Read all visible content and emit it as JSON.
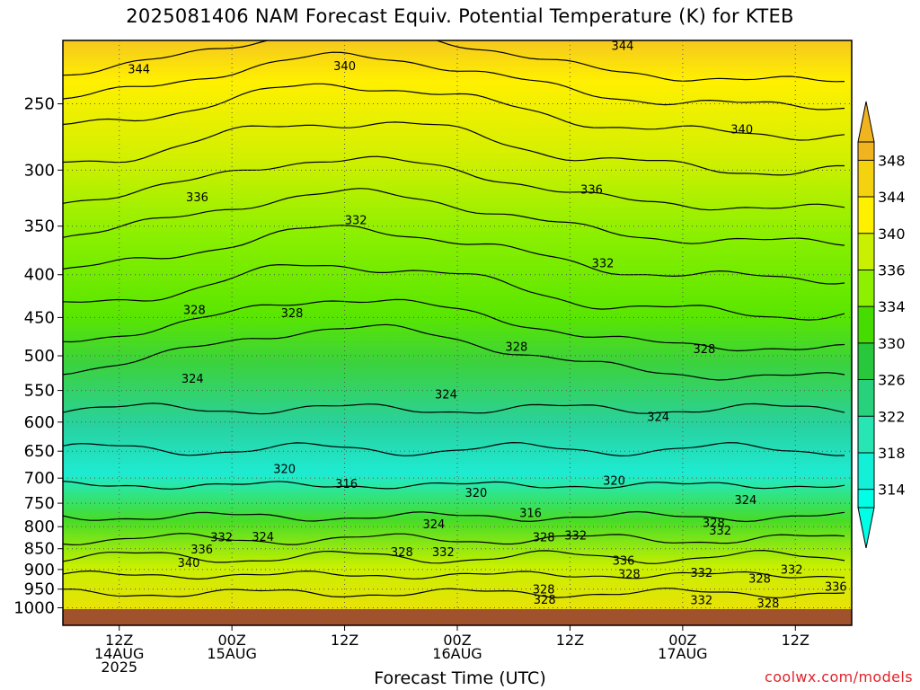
{
  "title": "2025081406 NAM Forecast Equiv. Potential Temperature (K) for KTEB",
  "credit": "coolwx.com/models",
  "chart_data": {
    "type": "heatmap",
    "variable": "Equivalent Potential Temperature",
    "units": "K",
    "xlabel": "Forecast Time (UTC)",
    "ylabel": "",
    "y_scale": "log-pressure (hPa), decreasing upward",
    "ylim": [
      1000,
      210
    ],
    "y_ticks": [
      250,
      300,
      350,
      400,
      450,
      500,
      550,
      600,
      650,
      700,
      750,
      800,
      850,
      900,
      950,
      1000
    ],
    "xlim_hours": [
      0,
      84
    ],
    "x_ticks": [
      {
        "hour": 6,
        "lines": [
          "12Z",
          "14AUG",
          "2025"
        ]
      },
      {
        "hour": 18,
        "lines": [
          "00Z",
          "15AUG"
        ]
      },
      {
        "hour": 30,
        "lines": [
          "12Z"
        ]
      },
      {
        "hour": 42,
        "lines": [
          "00Z",
          "16AUG"
        ]
      },
      {
        "hour": 54,
        "lines": [
          "12Z"
        ]
      },
      {
        "hour": 66,
        "lines": [
          "00Z",
          "17AUG"
        ]
      },
      {
        "hour": 78,
        "lines": [
          "12Z"
        ]
      }
    ],
    "grid": true,
    "colorbar": {
      "position": "right",
      "levels": [
        348,
        344,
        340,
        336,
        334,
        330,
        326,
        322,
        318,
        314
      ],
      "colors": [
        "#f0b41e",
        "#f5d20f",
        "#fff000",
        "#c8f000",
        "#8cf000",
        "#46dc00",
        "#28c83c",
        "#28d27d",
        "#28e6b4",
        "#14f0d7",
        "#00ffe6"
      ]
    },
    "contour_labels": [
      {
        "hour": 8.1,
        "p": 227,
        "value": "344"
      },
      {
        "hour": 30.0,
        "p": 225,
        "value": "340"
      },
      {
        "hour": 59.6,
        "p": 213,
        "value": "344"
      },
      {
        "hour": 72.3,
        "p": 268,
        "value": "340"
      },
      {
        "hour": 14.3,
        "p": 323,
        "value": "336"
      },
      {
        "hour": 56.3,
        "p": 316,
        "value": "336"
      },
      {
        "hour": 31.2,
        "p": 344,
        "value": "332"
      },
      {
        "hour": 57.5,
        "p": 387,
        "value": "332"
      },
      {
        "hour": 14.0,
        "p": 440,
        "value": "328"
      },
      {
        "hour": 24.4,
        "p": 444,
        "value": "328"
      },
      {
        "hour": 48.3,
        "p": 487,
        "value": "328"
      },
      {
        "hour": 68.3,
        "p": 490,
        "value": "328"
      },
      {
        "hour": 13.8,
        "p": 532,
        "value": "324"
      },
      {
        "hour": 40.8,
        "p": 555,
        "value": "324"
      },
      {
        "hour": 63.4,
        "p": 591,
        "value": "324"
      },
      {
        "hour": 23.6,
        "p": 682,
        "value": "320"
      },
      {
        "hour": 30.2,
        "p": 710,
        "value": "316"
      },
      {
        "hour": 44.0,
        "p": 728,
        "value": "320"
      },
      {
        "hour": 49.8,
        "p": 770,
        "value": "316"
      },
      {
        "hour": 58.7,
        "p": 704,
        "value": "320"
      },
      {
        "hour": 72.7,
        "p": 742,
        "value": "324"
      },
      {
        "hour": 39.5,
        "p": 794,
        "value": "324"
      },
      {
        "hour": 51.2,
        "p": 823,
        "value": "328"
      },
      {
        "hour": 54.6,
        "p": 819,
        "value": "332"
      },
      {
        "hour": 36.1,
        "p": 857,
        "value": "328"
      },
      {
        "hour": 40.5,
        "p": 857,
        "value": "332"
      },
      {
        "hour": 21.3,
        "p": 822,
        "value": "324"
      },
      {
        "hour": 16.9,
        "p": 823,
        "value": "332"
      },
      {
        "hour": 14.8,
        "p": 851,
        "value": "336"
      },
      {
        "hour": 13.4,
        "p": 883,
        "value": "340"
      },
      {
        "hour": 69.3,
        "p": 791,
        "value": "328"
      },
      {
        "hour": 70.0,
        "p": 808,
        "value": "332"
      },
      {
        "hour": 59.7,
        "p": 877,
        "value": "336"
      },
      {
        "hour": 60.3,
        "p": 910,
        "value": "328"
      },
      {
        "hour": 68.0,
        "p": 907,
        "value": "332"
      },
      {
        "hour": 74.2,
        "p": 922,
        "value": "328"
      },
      {
        "hour": 77.6,
        "p": 899,
        "value": "332"
      },
      {
        "hour": 82.3,
        "p": 942,
        "value": "336"
      },
      {
        "hour": 51.2,
        "p": 949,
        "value": "328"
      },
      {
        "hour": 51.3,
        "p": 977,
        "value": "328"
      },
      {
        "hour": 68.0,
        "p": 978,
        "value": "332"
      },
      {
        "hour": 75.1,
        "p": 987,
        "value": "328"
      }
    ]
  }
}
